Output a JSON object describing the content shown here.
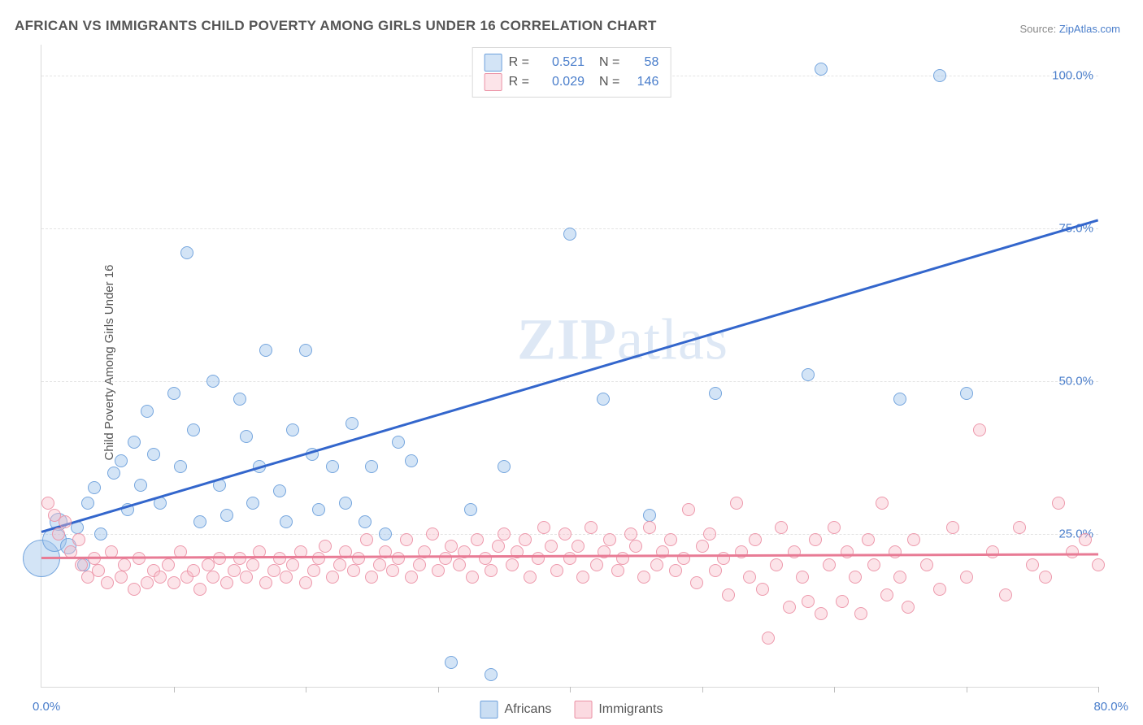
{
  "title": "AFRICAN VS IMMIGRANTS CHILD POVERTY AMONG GIRLS UNDER 16 CORRELATION CHART",
  "source_prefix": "Source: ",
  "source_link": "ZipAtlas.com",
  "ylabel": "Child Poverty Among Girls Under 16",
  "watermark_bold": "ZIP",
  "watermark_rest": "atlas",
  "chart": {
    "type": "scatter",
    "xlim": [
      0,
      80
    ],
    "ylim": [
      0,
      105
    ],
    "x_origin_label": "0.0%",
    "x_max_label": "80.0%",
    "x_ticks": [
      10,
      20,
      30,
      40,
      50,
      60,
      70,
      80
    ],
    "y_ticks": [
      {
        "v": 25,
        "label": "25.0%"
      },
      {
        "v": 50,
        "label": "50.0%"
      },
      {
        "v": 75,
        "label": "75.0%"
      },
      {
        "v": 100,
        "label": "100.0%"
      }
    ],
    "background_color": "#ffffff",
    "grid_color": "#e4e4e4",
    "series": [
      {
        "name": "Africans",
        "point_fill": "rgba(158,195,234,0.45)",
        "point_stroke": "#6ca0dc",
        "trend_color": "#3366cc",
        "trend": {
          "x0": 0,
          "y0": 25.5,
          "x1": 80,
          "y1": 76.5
        },
        "R": "0.521",
        "N": "58",
        "default_r": 7,
        "points": [
          {
            "x": 0,
            "y": 21,
            "r": 22
          },
          {
            "x": 1,
            "y": 24,
            "r": 14
          },
          {
            "x": 1.3,
            "y": 27,
            "r": 10
          },
          {
            "x": 2,
            "y": 23,
            "r": 9
          },
          {
            "x": 2.7,
            "y": 26
          },
          {
            "x": 3.2,
            "y": 20
          },
          {
            "x": 3.5,
            "y": 30
          },
          {
            "x": 4,
            "y": 32.5
          },
          {
            "x": 4.5,
            "y": 25
          },
          {
            "x": 5.5,
            "y": 35
          },
          {
            "x": 6,
            "y": 37
          },
          {
            "x": 6.5,
            "y": 29
          },
          {
            "x": 7,
            "y": 40
          },
          {
            "x": 7.5,
            "y": 33
          },
          {
            "x": 8,
            "y": 45
          },
          {
            "x": 8.5,
            "y": 38
          },
          {
            "x": 9,
            "y": 30
          },
          {
            "x": 10,
            "y": 48
          },
          {
            "x": 10.5,
            "y": 36
          },
          {
            "x": 11,
            "y": 71
          },
          {
            "x": 11.5,
            "y": 42
          },
          {
            "x": 12,
            "y": 27
          },
          {
            "x": 13,
            "y": 50
          },
          {
            "x": 13.5,
            "y": 33
          },
          {
            "x": 14,
            "y": 28
          },
          {
            "x": 15,
            "y": 47
          },
          {
            "x": 15.5,
            "y": 41
          },
          {
            "x": 16,
            "y": 30
          },
          {
            "x": 16.5,
            "y": 36
          },
          {
            "x": 17,
            "y": 55
          },
          {
            "x": 18,
            "y": 32
          },
          {
            "x": 18.5,
            "y": 27
          },
          {
            "x": 19,
            "y": 42
          },
          {
            "x": 20,
            "y": 55
          },
          {
            "x": 20.5,
            "y": 38
          },
          {
            "x": 21,
            "y": 29
          },
          {
            "x": 22,
            "y": 36
          },
          {
            "x": 23,
            "y": 30
          },
          {
            "x": 23.5,
            "y": 43
          },
          {
            "x": 24.5,
            "y": 27
          },
          {
            "x": 25,
            "y": 36
          },
          {
            "x": 26,
            "y": 25
          },
          {
            "x": 27,
            "y": 40
          },
          {
            "x": 28,
            "y": 37
          },
          {
            "x": 31,
            "y": 4
          },
          {
            "x": 32.5,
            "y": 29
          },
          {
            "x": 34,
            "y": 2
          },
          {
            "x": 35,
            "y": 36
          },
          {
            "x": 40,
            "y": 74
          },
          {
            "x": 42.5,
            "y": 47
          },
          {
            "x": 46,
            "y": 28
          },
          {
            "x": 51,
            "y": 48
          },
          {
            "x": 58,
            "y": 51
          },
          {
            "x": 59,
            "y": 101
          },
          {
            "x": 65,
            "y": 47
          },
          {
            "x": 68,
            "y": 100
          },
          {
            "x": 70,
            "y": 48
          }
        ]
      },
      {
        "name": "Immigrants",
        "point_fill": "rgba(247,187,200,0.40)",
        "point_stroke": "#eb91a5",
        "trend_color": "#e87b95",
        "trend": {
          "x0": 0,
          "y0": 21.3,
          "x1": 80,
          "y1": 21.9
        },
        "R": "0.029",
        "N": "146",
        "default_r": 7,
        "points": [
          {
            "x": 0.5,
            "y": 30
          },
          {
            "x": 1,
            "y": 28
          },
          {
            "x": 1.3,
            "y": 25
          },
          {
            "x": 1.8,
            "y": 27
          },
          {
            "x": 2.2,
            "y": 22
          },
          {
            "x": 2.8,
            "y": 24
          },
          {
            "x": 3,
            "y": 20
          },
          {
            "x": 3.5,
            "y": 18
          },
          {
            "x": 4,
            "y": 21
          },
          {
            "x": 4.3,
            "y": 19
          },
          {
            "x": 5,
            "y": 17
          },
          {
            "x": 5.3,
            "y": 22
          },
          {
            "x": 6,
            "y": 18
          },
          {
            "x": 6.3,
            "y": 20
          },
          {
            "x": 7,
            "y": 16
          },
          {
            "x": 7.4,
            "y": 21
          },
          {
            "x": 8,
            "y": 17
          },
          {
            "x": 8.5,
            "y": 19
          },
          {
            "x": 9,
            "y": 18
          },
          {
            "x": 9.6,
            "y": 20
          },
          {
            "x": 10,
            "y": 17
          },
          {
            "x": 10.5,
            "y": 22
          },
          {
            "x": 11,
            "y": 18
          },
          {
            "x": 11.5,
            "y": 19
          },
          {
            "x": 12,
            "y": 16
          },
          {
            "x": 12.6,
            "y": 20
          },
          {
            "x": 13,
            "y": 18
          },
          {
            "x": 13.5,
            "y": 21
          },
          {
            "x": 14,
            "y": 17
          },
          {
            "x": 14.6,
            "y": 19
          },
          {
            "x": 15,
            "y": 21
          },
          {
            "x": 15.5,
            "y": 18
          },
          {
            "x": 16,
            "y": 20
          },
          {
            "x": 16.5,
            "y": 22
          },
          {
            "x": 17,
            "y": 17
          },
          {
            "x": 17.6,
            "y": 19
          },
          {
            "x": 18,
            "y": 21
          },
          {
            "x": 18.5,
            "y": 18
          },
          {
            "x": 19,
            "y": 20
          },
          {
            "x": 19.6,
            "y": 22
          },
          {
            "x": 20,
            "y": 17
          },
          {
            "x": 20.6,
            "y": 19
          },
          {
            "x": 21,
            "y": 21
          },
          {
            "x": 21.5,
            "y": 23
          },
          {
            "x": 22,
            "y": 18
          },
          {
            "x": 22.6,
            "y": 20
          },
          {
            "x": 23,
            "y": 22
          },
          {
            "x": 23.6,
            "y": 19
          },
          {
            "x": 24,
            "y": 21
          },
          {
            "x": 24.6,
            "y": 24
          },
          {
            "x": 25,
            "y": 18
          },
          {
            "x": 25.6,
            "y": 20
          },
          {
            "x": 26,
            "y": 22
          },
          {
            "x": 26.6,
            "y": 19
          },
          {
            "x": 27,
            "y": 21
          },
          {
            "x": 27.6,
            "y": 24
          },
          {
            "x": 28,
            "y": 18
          },
          {
            "x": 28.6,
            "y": 20
          },
          {
            "x": 29,
            "y": 22
          },
          {
            "x": 29.6,
            "y": 25
          },
          {
            "x": 30,
            "y": 19
          },
          {
            "x": 30.6,
            "y": 21
          },
          {
            "x": 31,
            "y": 23
          },
          {
            "x": 31.6,
            "y": 20
          },
          {
            "x": 32,
            "y": 22
          },
          {
            "x": 32.6,
            "y": 18
          },
          {
            "x": 33,
            "y": 24
          },
          {
            "x": 33.6,
            "y": 21
          },
          {
            "x": 34,
            "y": 19
          },
          {
            "x": 34.6,
            "y": 23
          },
          {
            "x": 35,
            "y": 25
          },
          {
            "x": 35.6,
            "y": 20
          },
          {
            "x": 36,
            "y": 22
          },
          {
            "x": 36.6,
            "y": 24
          },
          {
            "x": 37,
            "y": 18
          },
          {
            "x": 37.6,
            "y": 21
          },
          {
            "x": 38,
            "y": 26
          },
          {
            "x": 38.6,
            "y": 23
          },
          {
            "x": 39,
            "y": 19
          },
          {
            "x": 39.6,
            "y": 25
          },
          {
            "x": 40,
            "y": 21
          },
          {
            "x": 40.6,
            "y": 23
          },
          {
            "x": 41,
            "y": 18
          },
          {
            "x": 41.6,
            "y": 26
          },
          {
            "x": 42,
            "y": 20
          },
          {
            "x": 42.6,
            "y": 22
          },
          {
            "x": 43,
            "y": 24
          },
          {
            "x": 43.6,
            "y": 19
          },
          {
            "x": 44,
            "y": 21
          },
          {
            "x": 44.6,
            "y": 25
          },
          {
            "x": 45,
            "y": 23
          },
          {
            "x": 45.6,
            "y": 18
          },
          {
            "x": 46,
            "y": 26
          },
          {
            "x": 46.6,
            "y": 20
          },
          {
            "x": 47,
            "y": 22
          },
          {
            "x": 47.6,
            "y": 24
          },
          {
            "x": 48,
            "y": 19
          },
          {
            "x": 48.6,
            "y": 21
          },
          {
            "x": 49,
            "y": 29
          },
          {
            "x": 49.6,
            "y": 17
          },
          {
            "x": 50,
            "y": 23
          },
          {
            "x": 50.6,
            "y": 25
          },
          {
            "x": 51,
            "y": 19
          },
          {
            "x": 51.6,
            "y": 21
          },
          {
            "x": 52,
            "y": 15
          },
          {
            "x": 52.6,
            "y": 30
          },
          {
            "x": 53,
            "y": 22
          },
          {
            "x": 53.6,
            "y": 18
          },
          {
            "x": 54,
            "y": 24
          },
          {
            "x": 54.6,
            "y": 16
          },
          {
            "x": 55,
            "y": 8
          },
          {
            "x": 55.6,
            "y": 20
          },
          {
            "x": 56,
            "y": 26
          },
          {
            "x": 56.6,
            "y": 13
          },
          {
            "x": 57,
            "y": 22
          },
          {
            "x": 57.6,
            "y": 18
          },
          {
            "x": 58,
            "y": 14
          },
          {
            "x": 58.6,
            "y": 24
          },
          {
            "x": 59,
            "y": 12
          },
          {
            "x": 59.6,
            "y": 20
          },
          {
            "x": 60,
            "y": 26
          },
          {
            "x": 60.6,
            "y": 14
          },
          {
            "x": 61,
            "y": 22
          },
          {
            "x": 61.6,
            "y": 18
          },
          {
            "x": 62,
            "y": 12
          },
          {
            "x": 62.6,
            "y": 24
          },
          {
            "x": 63,
            "y": 20
          },
          {
            "x": 63.6,
            "y": 30
          },
          {
            "x": 64,
            "y": 15
          },
          {
            "x": 64.6,
            "y": 22
          },
          {
            "x": 65,
            "y": 18
          },
          {
            "x": 65.6,
            "y": 13
          },
          {
            "x": 66,
            "y": 24
          },
          {
            "x": 67,
            "y": 20
          },
          {
            "x": 68,
            "y": 16
          },
          {
            "x": 69,
            "y": 26
          },
          {
            "x": 70,
            "y": 18
          },
          {
            "x": 71,
            "y": 42
          },
          {
            "x": 72,
            "y": 22
          },
          {
            "x": 73,
            "y": 15
          },
          {
            "x": 74,
            "y": 26
          },
          {
            "x": 75,
            "y": 20
          },
          {
            "x": 76,
            "y": 18
          },
          {
            "x": 77,
            "y": 30
          },
          {
            "x": 78,
            "y": 22
          },
          {
            "x": 79,
            "y": 24
          },
          {
            "x": 80,
            "y": 20
          }
        ]
      }
    ]
  },
  "legend_top": {
    "R_label": "R =",
    "N_label": "N ="
  },
  "legend_bottom": [
    {
      "label": "Africans",
      "fill": "rgba(158,195,234,0.55)",
      "stroke": "#6ca0dc"
    },
    {
      "label": "Immigrants",
      "fill": "rgba(247,187,200,0.55)",
      "stroke": "#eb91a5"
    }
  ]
}
